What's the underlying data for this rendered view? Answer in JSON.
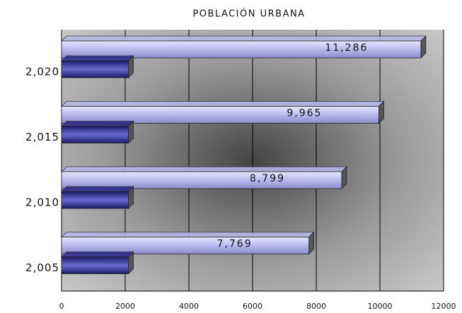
{
  "chart_data": {
    "type": "bar",
    "orientation": "horizontal",
    "title": "POBLACIÓN URBANA",
    "categories": [
      "2,020",
      "2,015",
      "2,010",
      "2,005"
    ],
    "series": [
      {
        "color": "#b9b9ee",
        "values": [
          11286,
          9965,
          8799,
          7769
        ],
        "value_labels": [
          "11,286",
          "9,965",
          "8,799",
          "7,769"
        ]
      },
      {
        "color": "#2a2a8a",
        "values": [
          2100,
          2100,
          2100,
          2100
        ]
      }
    ],
    "xlim": [
      0,
      12000
    ],
    "xticks": [
      0,
      2000,
      4000,
      6000,
      8000,
      10000,
      12000
    ],
    "grid": true
  }
}
